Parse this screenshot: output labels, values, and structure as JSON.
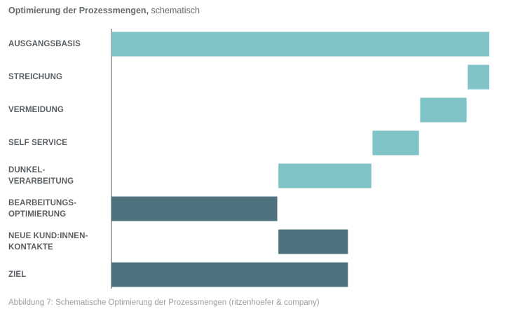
{
  "title": {
    "bold": "Optimierung der Prozessmengen,",
    "light": "schematisch"
  },
  "caption": "Abbildung 7: Schematische Optimierung der Prozessmengen (ritzenhoefer & company)",
  "colors": {
    "light": "#80c4c8",
    "dark": "#4e737f",
    "axis": "#6b6f72",
    "label": "#5a5f63"
  },
  "chart_data": {
    "type": "bar",
    "subtype": "waterfall-horizontal",
    "categories": [
      "AUSGANGSBASIS",
      "STREICHUNG",
      "VERMEIDUNG",
      "SELF SERVICE",
      "DUNKEL-\nVERARBEITUNG",
      "BEARBEITUNGS-\nOPTIMIERUNG",
      "NEUE KUND:INNEN-\nKONTAKTE",
      "ZIEL"
    ],
    "bars": [
      {
        "start": 0,
        "end": 100,
        "tone": "light"
      },
      {
        "start": 94.3,
        "end": 100,
        "tone": "light"
      },
      {
        "start": 81.7,
        "end": 94.0,
        "tone": "light"
      },
      {
        "start": 69.1,
        "end": 81.4,
        "tone": "light"
      },
      {
        "start": 44.2,
        "end": 68.8,
        "tone": "light"
      },
      {
        "start": 0,
        "end": 43.9,
        "tone": "dark"
      },
      {
        "start": 44.2,
        "end": 62.6,
        "tone": "dark"
      },
      {
        "start": 0,
        "end": 62.6,
        "tone": "dark"
      }
    ],
    "xlim": [
      0,
      100
    ],
    "grid": false,
    "legend": "none"
  }
}
